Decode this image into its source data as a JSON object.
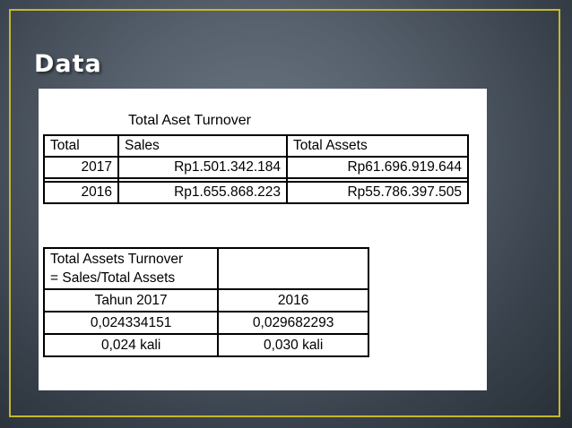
{
  "slide": {
    "title": "Data"
  },
  "content": {
    "caption": "Total Aset Turnover",
    "table1": {
      "headers": [
        "Total",
        "Sales",
        "Total Assets"
      ],
      "rows": [
        [
          "2017",
          "Rp1.501.342.184",
          "Rp61.696.919.644"
        ],
        [
          "2016",
          "Rp1.655.868.223",
          "Rp55.786.397.505"
        ]
      ]
    },
    "table2": {
      "header_line1": "Total Assets Turnover",
      "header_line2": "= Sales/Total Assets",
      "header_right": "",
      "rows": [
        [
          "Tahun 2017",
          "2016"
        ],
        [
          "0,024334151",
          "0,029682293"
        ],
        [
          "0,024 kali",
          "0,030 kali"
        ]
      ]
    }
  },
  "colors": {
    "frame_border": "#c7b82a",
    "title_text": "#ffffff",
    "background_center": "#6b7683",
    "background_edge": "#262d35"
  }
}
